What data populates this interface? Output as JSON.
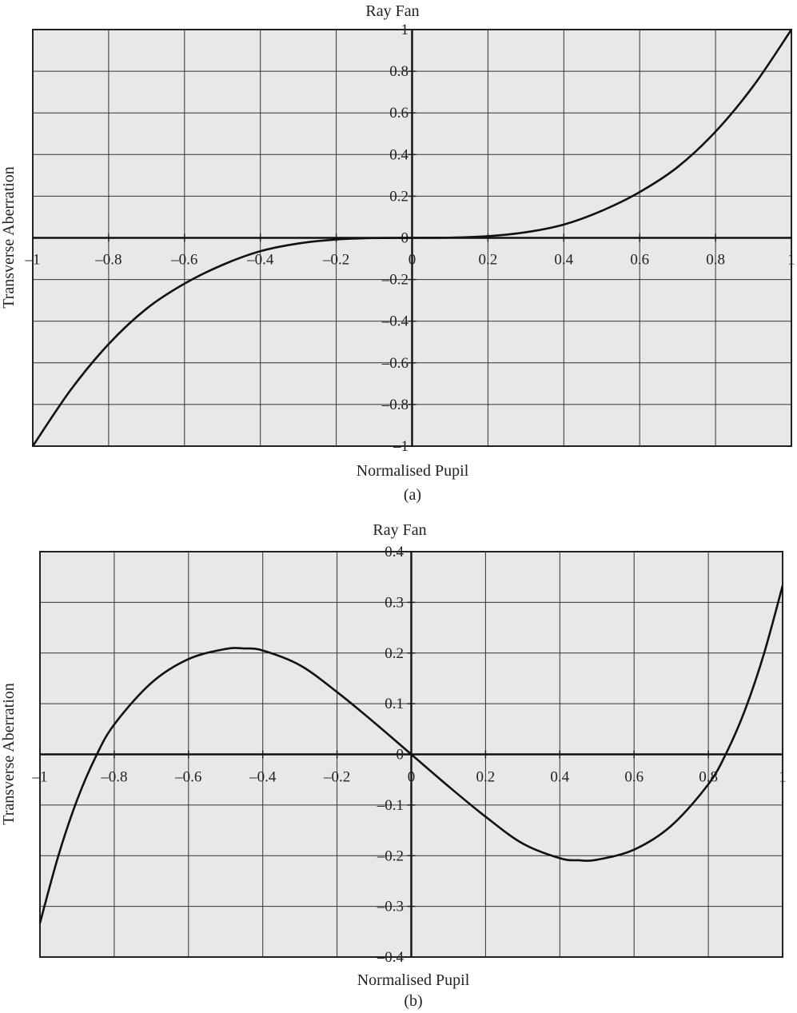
{
  "chart_data": [
    {
      "type": "line",
      "panel": "(a)",
      "title": "Ray Fan",
      "xlabel": "Normalised Pupil",
      "ylabel": "Transverse Aberration",
      "caption": "(a)",
      "xlim": [
        -1,
        1
      ],
      "ylim": [
        -1,
        1
      ],
      "grid": true,
      "x_ticks": [
        -1,
        -0.8,
        -0.6,
        -0.4,
        -0.2,
        0,
        0.2,
        0.4,
        0.6,
        0.8,
        1
      ],
      "x_tick_labels": [
        "–1",
        "–0.8",
        "–0.6",
        "–0.4",
        "–0.2",
        "0",
        "0.2",
        "0.4",
        "0.6",
        "0.8",
        "1"
      ],
      "y_ticks": [
        -1,
        -0.8,
        -0.6,
        -0.4,
        -0.2,
        0,
        0.2,
        0.4,
        0.6,
        0.8,
        1
      ],
      "y_tick_labels": [
        "–1",
        "–0.8",
        "–0.6",
        "–0.4",
        "–0.2",
        "0",
        "0.2",
        "0.4",
        "0.6",
        "0.8",
        "1"
      ],
      "series": [
        {
          "x": [
            -1,
            -0.9,
            -0.8,
            -0.7,
            -0.6,
            -0.5,
            -0.4,
            -0.3,
            -0.2,
            -0.1,
            0,
            0.1,
            0.2,
            0.3,
            0.4,
            0.5,
            0.6,
            0.7,
            0.8,
            0.9,
            1
          ],
          "y": [
            -1,
            -0.73,
            -0.51,
            -0.34,
            -0.22,
            -0.13,
            -0.064,
            -0.027,
            -0.008,
            -0.001,
            0,
            0.001,
            0.008,
            0.027,
            0.064,
            0.13,
            0.22,
            0.34,
            0.51,
            0.73,
            1
          ]
        }
      ]
    },
    {
      "type": "line",
      "panel": "(b)",
      "title": "Ray Fan",
      "xlabel": "Normalised Pupil",
      "ylabel": "Transverse Aberration",
      "caption": "(b)",
      "xlim": [
        -1,
        1
      ],
      "ylim": [
        -0.4,
        0.4
      ],
      "grid": true,
      "x_ticks": [
        -1,
        -0.8,
        -0.6,
        -0.4,
        -0.2,
        0,
        0.2,
        0.4,
        0.6,
        0.8,
        1
      ],
      "x_tick_labels": [
        "–1",
        "–0.8",
        "–0.6",
        "–0.4",
        "–0.2",
        "0",
        "0.2",
        "0.4",
        "0.6",
        "0.8",
        "1"
      ],
      "y_ticks": [
        -0.4,
        -0.3,
        -0.2,
        -0.1,
        0,
        0.1,
        0.2,
        0.3,
        0.4
      ],
      "y_tick_labels": [
        "–0.4",
        "–0.3",
        "–0.2",
        "–0.1",
        "0",
        "0.1",
        "0.2",
        "0.3",
        "0.4"
      ],
      "series": [
        {
          "x": [
            -1,
            -0.95,
            -0.9,
            -0.85,
            -0.8,
            -0.7,
            -0.6,
            -0.5,
            -0.45,
            -0.4,
            -0.3,
            -0.2,
            -0.1,
            0,
            0.1,
            0.2,
            0.3,
            0.4,
            0.45,
            0.5,
            0.6,
            0.7,
            0.8,
            0.85,
            0.9,
            0.95,
            1
          ],
          "y": [
            -0.333,
            -0.199,
            -0.09,
            -0.005,
            0.059,
            0.141,
            0.188,
            0.208,
            0.209,
            0.205,
            0.176,
            0.123,
            0.063,
            0,
            -0.063,
            -0.123,
            -0.176,
            -0.205,
            -0.209,
            -0.208,
            -0.188,
            -0.141,
            -0.059,
            0.005,
            0.09,
            0.199,
            0.333
          ]
        }
      ]
    }
  ]
}
